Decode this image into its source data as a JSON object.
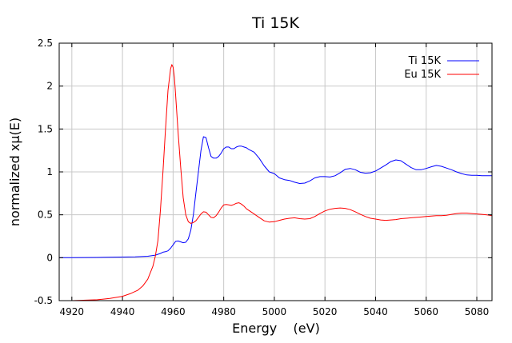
{
  "chart_data": {
    "type": "line",
    "title": "Ti 15K",
    "xlabel": "Energy    (eV)",
    "ylabel": "normalized xμ(E)",
    "xlim": [
      4915,
      5086
    ],
    "ylim": [
      -0.5,
      2.5
    ],
    "xticks": [
      4920,
      4940,
      4960,
      4980,
      5000,
      5020,
      5040,
      5060,
      5080
    ],
    "yticks": [
      -0.5,
      0,
      0.5,
      1,
      1.5,
      2,
      2.5
    ],
    "xtick_labels": [
      "4920",
      "4940",
      "4960",
      "4980",
      "5000",
      "5020",
      "5040",
      "5060",
      "5080"
    ],
    "ytick_labels": [
      "-0.5",
      "0",
      "0.5",
      "1",
      "1.5",
      "2",
      "2.5"
    ],
    "grid": true,
    "legend_position": "top-right",
    "series": [
      {
        "name": "Ti 15K",
        "color": "#0000ff",
        "x": [
          4915,
          4920,
          4930,
          4940,
          4945,
          4950,
          4953,
          4955,
          4956,
          4957,
          4958,
          4959,
          4960,
          4961,
          4962,
          4963,
          4964,
          4965,
          4966,
          4967,
          4968,
          4969,
          4970,
          4971,
          4972,
          4973,
          4974,
          4975,
          4976,
          4977,
          4978,
          4979,
          4980,
          4981,
          4982,
          4983,
          4984,
          4985,
          4986,
          4987,
          4988,
          4989,
          4990,
          4992,
          4994,
          4996,
          4998,
          5000,
          5002,
          5004,
          5006,
          5008,
          5010,
          5012,
          5014,
          5016,
          5018,
          5020,
          5022,
          5024,
          5026,
          5028,
          5030,
          5032,
          5034,
          5036,
          5038,
          5040,
          5042,
          5044,
          5046,
          5048,
          5050,
          5052,
          5054,
          5056,
          5058,
          5060,
          5062,
          5064,
          5066,
          5068,
          5070,
          5072,
          5074,
          5076,
          5078,
          5080,
          5082,
          5084,
          5086
        ],
        "y": [
          0.0,
          0.0,
          0.003,
          0.008,
          0.011,
          0.017,
          0.03,
          0.05,
          0.065,
          0.07,
          0.08,
          0.11,
          0.15,
          0.19,
          0.195,
          0.185,
          0.175,
          0.18,
          0.22,
          0.32,
          0.5,
          0.75,
          1.0,
          1.25,
          1.41,
          1.4,
          1.28,
          1.18,
          1.16,
          1.16,
          1.18,
          1.22,
          1.27,
          1.29,
          1.29,
          1.27,
          1.27,
          1.29,
          1.3,
          1.3,
          1.29,
          1.28,
          1.26,
          1.23,
          1.16,
          1.07,
          1.0,
          0.98,
          0.93,
          0.91,
          0.9,
          0.88,
          0.865,
          0.87,
          0.895,
          0.93,
          0.945,
          0.945,
          0.94,
          0.955,
          0.99,
          1.03,
          1.04,
          1.025,
          0.995,
          0.985,
          0.99,
          1.01,
          1.045,
          1.08,
          1.12,
          1.14,
          1.13,
          1.09,
          1.05,
          1.025,
          1.025,
          1.04,
          1.06,
          1.075,
          1.065,
          1.045,
          1.025,
          1.0,
          0.98,
          0.965,
          0.96,
          0.96,
          0.955,
          0.955,
          0.955
        ]
      },
      {
        "name": "Eu 15K",
        "color": "#ff0000",
        "x": [
          4915,
          4920,
          4930,
          4935,
          4940,
          4943,
          4946,
          4948,
          4950,
          4952,
          4953,
          4954,
          4955,
          4956,
          4957,
          4958,
          4959,
          4959.5,
          4960,
          4960.5,
          4961,
          4962,
          4963,
          4964,
          4965,
          4966,
          4967,
          4968,
          4969,
          4970,
          4971,
          4972,
          4973,
          4974,
          4975,
          4976,
          4977,
          4978,
          4979,
          4980,
          4981,
          4982,
          4983,
          4984,
          4985,
          4986,
          4987,
          4988,
          4989,
          4990,
          4992,
          4994,
          4996,
          4998,
          5000,
          5002,
          5004,
          5006,
          5008,
          5010,
          5012,
          5014,
          5016,
          5018,
          5020,
          5022,
          5024,
          5026,
          5028,
          5030,
          5032,
          5034,
          5036,
          5038,
          5040,
          5042,
          5044,
          5046,
          5048,
          5050,
          5052,
          5054,
          5056,
          5058,
          5060,
          5062,
          5064,
          5066,
          5068,
          5070,
          5072,
          5074,
          5076,
          5078,
          5080,
          5082,
          5084,
          5086
        ],
        "y": [
          -0.5,
          -0.5,
          -0.49,
          -0.475,
          -0.45,
          -0.42,
          -0.38,
          -0.33,
          -0.25,
          -0.1,
          0.02,
          0.2,
          0.55,
          1.0,
          1.5,
          1.95,
          2.2,
          2.25,
          2.22,
          2.1,
          1.9,
          1.45,
          1.05,
          0.7,
          0.5,
          0.42,
          0.4,
          0.41,
          0.43,
          0.47,
          0.51,
          0.535,
          0.53,
          0.5,
          0.47,
          0.465,
          0.49,
          0.53,
          0.58,
          0.615,
          0.62,
          0.615,
          0.61,
          0.62,
          0.635,
          0.64,
          0.625,
          0.6,
          0.57,
          0.55,
          0.51,
          0.47,
          0.43,
          0.415,
          0.42,
          0.435,
          0.45,
          0.46,
          0.465,
          0.455,
          0.45,
          0.455,
          0.48,
          0.515,
          0.545,
          0.565,
          0.575,
          0.58,
          0.575,
          0.56,
          0.535,
          0.505,
          0.48,
          0.46,
          0.45,
          0.44,
          0.435,
          0.44,
          0.445,
          0.455,
          0.46,
          0.465,
          0.47,
          0.475,
          0.48,
          0.485,
          0.49,
          0.49,
          0.495,
          0.505,
          0.515,
          0.52,
          0.52,
          0.515,
          0.51,
          0.505,
          0.5,
          0.49
        ]
      }
    ]
  }
}
